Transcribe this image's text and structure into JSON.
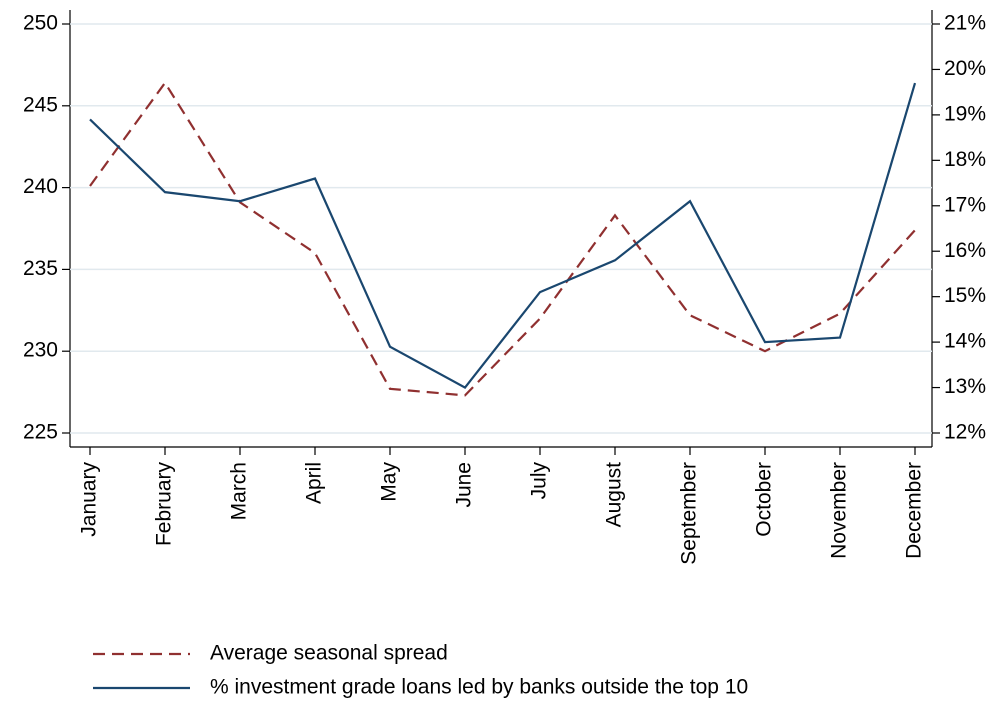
{
  "chart_data": {
    "type": "line",
    "categories": [
      "January",
      "February",
      "March",
      "April",
      "May",
      "June",
      "July",
      "August",
      "September",
      "October",
      "November",
      "December"
    ],
    "series": [
      {
        "name": "Average seasonal spread",
        "color": "#903030",
        "dash": true,
        "values": [
          240.1,
          246.4,
          239.1,
          236.0,
          227.7,
          227.3,
          232.0,
          238.3,
          232.2,
          230.0,
          232.3,
          237.4
        ]
      },
      {
        "name": "% investment grade loans led by banks outside the top 10",
        "color": "#1a476f",
        "axis": "y2",
        "values": [
          18.9,
          17.3,
          17.1,
          17.6,
          13.9,
          13.0,
          15.1,
          15.8,
          17.1,
          14.0,
          14.1,
          19.7
        ]
      }
    ],
    "ylim": [
      225,
      250
    ],
    "yticks": [
      225,
      230,
      235,
      240,
      245,
      250
    ],
    "y2lim": [
      12,
      21
    ],
    "y2ticks": [
      {
        "value": 12,
        "label": "12%"
      },
      {
        "value": 13,
        "label": "13%"
      },
      {
        "value": 14,
        "label": "14%"
      },
      {
        "value": 15,
        "label": "15%"
      },
      {
        "value": 16,
        "label": "16%"
      },
      {
        "value": 17,
        "label": "17%"
      },
      {
        "value": 18,
        "label": "18%"
      },
      {
        "value": 19,
        "label": "19%"
      },
      {
        "value": 20,
        "label": "20%"
      },
      {
        "value": 21,
        "label": "21%"
      }
    ],
    "grid": true
  }
}
